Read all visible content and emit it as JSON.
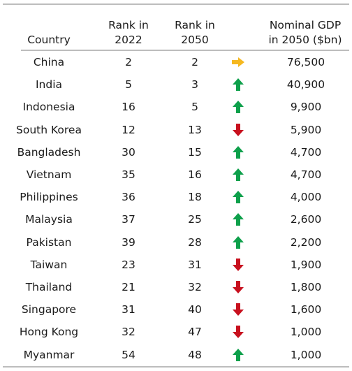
{
  "headers": {
    "country": "Country",
    "rank2022_line1": "Rank in",
    "rank2022_line2": "2022",
    "rank2050_line1": "Rank in",
    "rank2050_line2": "2050",
    "gdp_line1": "Nominal GDP",
    "gdp_line2": "in 2050 ($bn)"
  },
  "colors": {
    "up": "#0ea04b",
    "down": "#c8101e",
    "same": "#f5b820",
    "rule": "#bdbdbd"
  },
  "chart_data": {
    "type": "table",
    "columns": [
      "Country",
      "Rank in 2022",
      "Rank in 2050",
      "",
      "Nominal GDP in 2050 ($bn)"
    ],
    "rows": [
      {
        "country": "China",
        "rank_2022": 2,
        "rank_2050": 2,
        "trend": "right-arrow-icon",
        "gdp_2050": "76,500"
      },
      {
        "country": "India",
        "rank_2022": 5,
        "rank_2050": 3,
        "trend": "up-arrow-icon",
        "gdp_2050": "40,900"
      },
      {
        "country": "Indonesia",
        "rank_2022": 16,
        "rank_2050": 5,
        "trend": "up-arrow-icon",
        "gdp_2050": "9,900"
      },
      {
        "country": "South Korea",
        "rank_2022": 12,
        "rank_2050": 13,
        "trend": "down-arrow-icon",
        "gdp_2050": "5,900"
      },
      {
        "country": "Bangladesh",
        "rank_2022": 30,
        "rank_2050": 15,
        "trend": "up-arrow-icon",
        "gdp_2050": "4,700"
      },
      {
        "country": "Vietnam",
        "rank_2022": 35,
        "rank_2050": 16,
        "trend": "up-arrow-icon",
        "gdp_2050": "4,700"
      },
      {
        "country": "Philippines",
        "rank_2022": 36,
        "rank_2050": 18,
        "trend": "up-arrow-icon",
        "gdp_2050": "4,000"
      },
      {
        "country": "Malaysia",
        "rank_2022": 37,
        "rank_2050": 25,
        "trend": "up-arrow-icon",
        "gdp_2050": "2,600"
      },
      {
        "country": "Pakistan",
        "rank_2022": 39,
        "rank_2050": 28,
        "trend": "up-arrow-icon",
        "gdp_2050": "2,200"
      },
      {
        "country": "Taiwan",
        "rank_2022": 23,
        "rank_2050": 31,
        "trend": "down-arrow-icon",
        "gdp_2050": "1,900"
      },
      {
        "country": "Thailand",
        "rank_2022": 21,
        "rank_2050": 32,
        "trend": "down-arrow-icon",
        "gdp_2050": "1,800"
      },
      {
        "country": "Singapore",
        "rank_2022": 31,
        "rank_2050": 40,
        "trend": "down-arrow-icon",
        "gdp_2050": "1,600"
      },
      {
        "country": "Hong Kong",
        "rank_2022": 32,
        "rank_2050": 47,
        "trend": "down-arrow-icon",
        "gdp_2050": "1,000"
      },
      {
        "country": "Myanmar",
        "rank_2022": 54,
        "rank_2050": 48,
        "trend": "up-arrow-icon",
        "gdp_2050": "1,000"
      }
    ]
  }
}
